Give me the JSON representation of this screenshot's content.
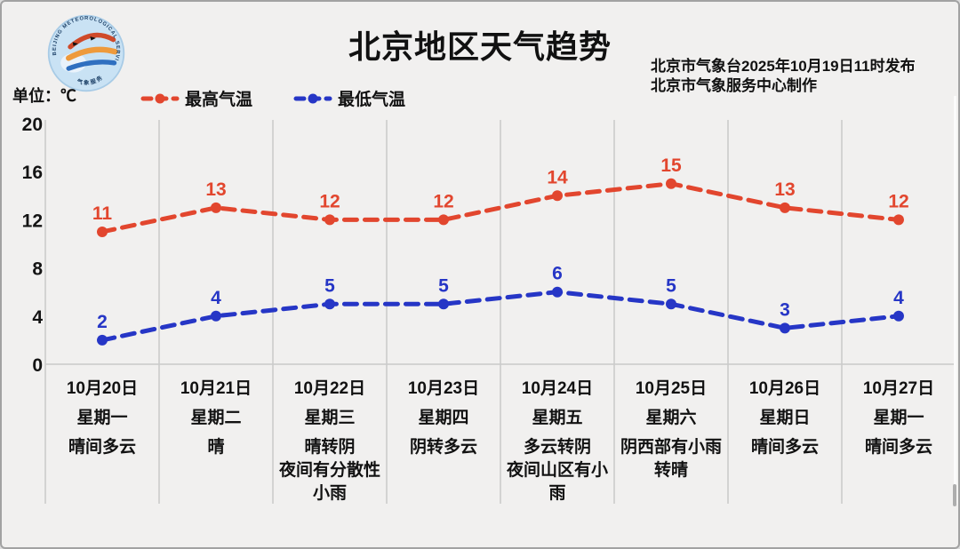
{
  "page": {
    "background_color": "#f1f0ef",
    "border_color": "#a2a2a2"
  },
  "header": {
    "title": "北京地区天气趋势",
    "issued_line1": "北京市气象台2025年10月19日11时发布",
    "issued_line2": "北京市气象服务中心制作",
    "unit_label": "单位：℃",
    "logo": {
      "name": "beijing-meteorological-service-logo",
      "ring_text_top": "BEIJING METEOROLOGICAL SERVICE",
      "ring_text_bottom": "气象服务"
    }
  },
  "chart_data": {
    "type": "line",
    "title": "北京地区天气趋势",
    "unit": "℃",
    "ylim": [
      0,
      20
    ],
    "y_ticks": [
      0,
      4,
      8,
      12,
      16,
      20
    ],
    "grid": "vertical column separators, light gray; baseline at 0",
    "legend_position": "top-left",
    "line_style": "dashed with round dot markers and value labels above points",
    "categories": [
      {
        "date": "10月20日",
        "weekday": "星期一",
        "weather": "晴间多云"
      },
      {
        "date": "10月21日",
        "weekday": "星期二",
        "weather": "晴"
      },
      {
        "date": "10月22日",
        "weekday": "星期三",
        "weather": "晴转阴\n夜间有分散性\n小雨"
      },
      {
        "date": "10月23日",
        "weekday": "星期四",
        "weather": "阴转多云"
      },
      {
        "date": "10月24日",
        "weekday": "星期五",
        "weather": "多云转阴\n夜间山区有小\n雨"
      },
      {
        "date": "10月25日",
        "weekday": "星期六",
        "weather": "阴西部有小雨\n转晴"
      },
      {
        "date": "10月26日",
        "weekday": "星期日",
        "weather": "晴间多云"
      },
      {
        "date": "10月27日",
        "weekday": "星期一",
        "weather": "晴间多云"
      }
    ],
    "series": [
      {
        "name": "最高气温",
        "color": "#e2462e",
        "values": [
          11,
          13,
          12,
          12,
          14,
          15,
          13,
          12
        ]
      },
      {
        "name": "最低气温",
        "color": "#2636c6",
        "values": [
          2,
          4,
          5,
          5,
          6,
          5,
          3,
          4
        ]
      }
    ]
  }
}
